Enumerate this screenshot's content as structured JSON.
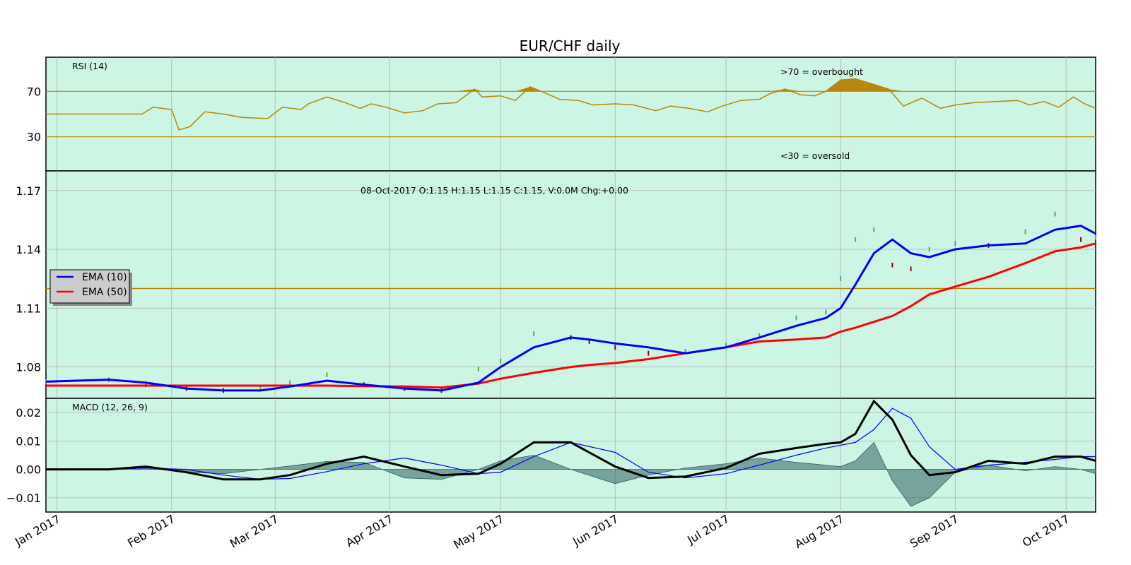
{
  "chart_data": {
    "type": "line",
    "title": "EUR/CHF daily",
    "months": [
      "Jan 2017",
      "Feb 2017",
      "Mar 2017",
      "Apr 2017",
      "May 2017",
      "Jun 2017",
      "Jul 2017",
      "Aug 2017",
      "Sep 2017",
      "Oct 2017"
    ],
    "x_range": [
      "2016-12-29",
      "2017-10-09"
    ],
    "grid": true,
    "colors": {
      "background": "#ccf5e4",
      "rsi": "#b8860b",
      "ema_fast": "#0000ff",
      "ema_slow": "#ff0000",
      "macd": "#000000",
      "signal": "#0000ff",
      "hist": "#2f6060",
      "level": "#b8860b"
    },
    "rsi": {
      "label": "RSI (14)",
      "ylim": [
        0,
        100
      ],
      "yticks": [
        30,
        70
      ],
      "overbought_label": ">70 = overbought",
      "oversold_label": "<30 = oversold",
      "dates": [
        "2016-12-29",
        "2017-01-06",
        "2017-01-13",
        "2017-01-20",
        "2017-01-24",
        "2017-01-27",
        "2017-02-01",
        "2017-02-03",
        "2017-02-06",
        "2017-02-10",
        "2017-02-15",
        "2017-02-20",
        "2017-02-27",
        "2017-03-03",
        "2017-03-08",
        "2017-03-10",
        "2017-03-15",
        "2017-03-20",
        "2017-03-24",
        "2017-03-27",
        "2017-03-31",
        "2017-04-05",
        "2017-04-10",
        "2017-04-14",
        "2017-04-19",
        "2017-04-24",
        "2017-04-26",
        "2017-05-01",
        "2017-05-05",
        "2017-05-09",
        "2017-05-12",
        "2017-05-17",
        "2017-05-22",
        "2017-05-26",
        "2017-06-01",
        "2017-06-06",
        "2017-06-12",
        "2017-06-16",
        "2017-06-21",
        "2017-06-26",
        "2017-06-30",
        "2017-07-05",
        "2017-07-10",
        "2017-07-13",
        "2017-07-17",
        "2017-07-21",
        "2017-07-25",
        "2017-07-28",
        "2017-08-01",
        "2017-08-05",
        "2017-08-08",
        "2017-08-14",
        "2017-08-18",
        "2017-08-23",
        "2017-08-28",
        "2017-09-01",
        "2017-09-06",
        "2017-09-12",
        "2017-09-18",
        "2017-09-21",
        "2017-09-25",
        "2017-09-29",
        "2017-10-03",
        "2017-10-06",
        "2017-10-09"
      ],
      "values": [
        50,
        50,
        50,
        50,
        50,
        56,
        54,
        36,
        39,
        52,
        50,
        47,
        46,
        56,
        54,
        59,
        65,
        60,
        55,
        59,
        56,
        51,
        53,
        59,
        60,
        72,
        65,
        66,
        62,
        74,
        70,
        63,
        62,
        58,
        59,
        58,
        53,
        57,
        55,
        52,
        57,
        62,
        63,
        68,
        72,
        67,
        66,
        70,
        80,
        81,
        78,
        72,
        57,
        64,
        55,
        58,
        60,
        61,
        62,
        58,
        61,
        56,
        65,
        59,
        55
      ]
    },
    "price": {
      "info": "08-Oct-2017 O:1.15 H:1.15 L:1.15 C:1.15, V:0.0M Chg:+0.00",
      "ylim": [
        1.064,
        1.18
      ],
      "yticks": [
        "1.08",
        "1.11",
        "1.14",
        "1.17"
      ],
      "ytick_values": [
        1.08,
        1.11,
        1.14,
        1.17
      ],
      "hline": 1.12,
      "legend": [
        "EMA (10)",
        "EMA (50)"
      ],
      "dates": [
        "2016-12-29",
        "2017-01-15",
        "2017-01-25",
        "2017-02-05",
        "2017-02-15",
        "2017-02-25",
        "2017-03-05",
        "2017-03-15",
        "2017-03-25",
        "2017-04-05",
        "2017-04-15",
        "2017-04-25",
        "2017-05-01",
        "2017-05-10",
        "2017-05-20",
        "2017-05-25",
        "2017-06-01",
        "2017-06-10",
        "2017-06-20",
        "2017-07-01",
        "2017-07-10",
        "2017-07-20",
        "2017-07-28",
        "2017-08-01",
        "2017-08-05",
        "2017-08-10",
        "2017-08-15",
        "2017-08-20",
        "2017-08-25",
        "2017-09-01",
        "2017-09-10",
        "2017-09-20",
        "2017-09-28",
        "2017-10-05",
        "2017-10-09"
      ],
      "ema_fast": [
        1.0725,
        1.0735,
        1.072,
        1.069,
        1.068,
        1.068,
        1.07,
        1.073,
        1.071,
        1.069,
        1.068,
        1.072,
        1.08,
        1.09,
        1.095,
        1.094,
        1.092,
        1.09,
        1.087,
        1.09,
        1.095,
        1.101,
        1.105,
        1.11,
        1.122,
        1.138,
        1.145,
        1.138,
        1.136,
        1.14,
        1.142,
        1.143,
        1.15,
        1.152,
        1.148
      ],
      "ema_slow": [
        1.0705,
        1.0705,
        1.0705,
        1.0705,
        1.0705,
        1.0705,
        1.0705,
        1.0705,
        1.0702,
        1.07,
        1.0695,
        1.0715,
        1.074,
        1.077,
        1.08,
        1.081,
        1.082,
        1.084,
        1.087,
        1.09,
        1.093,
        1.094,
        1.095,
        1.098,
        1.1,
        1.103,
        1.106,
        1.111,
        1.117,
        1.121,
        1.126,
        1.133,
        1.139,
        1.141,
        1.143
      ],
      "closes": [
        1.0725,
        1.0735,
        1.071,
        1.069,
        1.068,
        1.069,
        1.072,
        1.076,
        1.071,
        1.069,
        1.068,
        1.079,
        1.083,
        1.097,
        1.095,
        1.093,
        1.09,
        1.087,
        1.088,
        1.091,
        1.096,
        1.105,
        1.108,
        1.125,
        1.145,
        1.15,
        1.132,
        1.13,
        1.14,
        1.143,
        1.142,
        1.149,
        1.158,
        1.145,
        1.146
      ]
    },
    "macd": {
      "label": "MACD (12, 26, 9)",
      "ylim": [
        -0.015,
        0.025
      ],
      "yticks": [
        "−0.01",
        "0.00",
        "0.01",
        "0.02"
      ],
      "ytick_values": [
        -0.01,
        0.0,
        0.01,
        0.02
      ],
      "dates": [
        "2016-12-29",
        "2017-01-15",
        "2017-01-25",
        "2017-02-05",
        "2017-02-15",
        "2017-02-25",
        "2017-03-05",
        "2017-03-15",
        "2017-03-25",
        "2017-04-05",
        "2017-04-15",
        "2017-04-25",
        "2017-05-01",
        "2017-05-10",
        "2017-05-20",
        "2017-06-01",
        "2017-06-10",
        "2017-06-20",
        "2017-07-01",
        "2017-07-10",
        "2017-07-20",
        "2017-07-28",
        "2017-08-01",
        "2017-08-05",
        "2017-08-10",
        "2017-08-15",
        "2017-08-20",
        "2017-08-25",
        "2017-09-01",
        "2017-09-10",
        "2017-09-20",
        "2017-09-28",
        "2017-10-05",
        "2017-10-09"
      ],
      "macd": [
        0.0,
        0.0,
        0.001,
        -0.001,
        -0.0035,
        -0.0035,
        -0.002,
        0.002,
        0.0045,
        0.001,
        -0.002,
        -0.0015,
        0.002,
        0.0095,
        0.0095,
        0.001,
        -0.003,
        -0.0025,
        0.0005,
        0.0055,
        0.0075,
        0.009,
        0.0095,
        0.0125,
        0.024,
        0.0175,
        0.005,
        -0.002,
        -0.001,
        0.003,
        0.002,
        0.0045,
        0.0045,
        0.003
      ],
      "signal": [
        0.0,
        0.0,
        0.0005,
        0.0,
        -0.002,
        -0.0035,
        -0.0032,
        -0.0008,
        0.002,
        0.004,
        0.0015,
        -0.0015,
        -0.001,
        0.0045,
        0.0095,
        0.006,
        -0.001,
        -0.003,
        -0.0015,
        0.0015,
        0.005,
        0.0075,
        0.0085,
        0.0095,
        0.014,
        0.0215,
        0.018,
        0.008,
        0.0,
        0.0015,
        0.0025,
        0.0035,
        0.0045,
        0.0045
      ],
      "hist": [
        0.0,
        0.0,
        0.0005,
        -0.001,
        -0.0015,
        0.0,
        0.0012,
        0.0028,
        0.0025,
        -0.003,
        -0.0035,
        0.0,
        0.003,
        0.005,
        0.0,
        -0.005,
        -0.002,
        0.0005,
        0.002,
        0.004,
        0.0025,
        0.0015,
        0.001,
        0.003,
        0.0095,
        -0.004,
        -0.013,
        -0.01,
        -0.001,
        0.0015,
        -0.0005,
        0.001,
        0.0,
        -0.0015
      ]
    }
  }
}
